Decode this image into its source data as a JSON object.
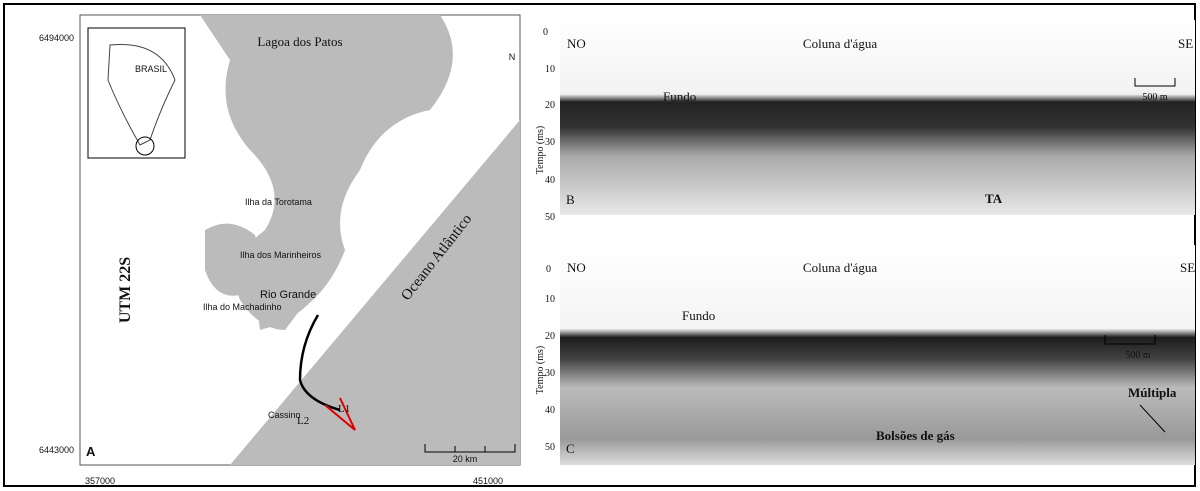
{
  "map": {
    "panel": "A",
    "y_coords": [
      "6494000",
      "6443000"
    ],
    "x_coords": [
      "357000",
      "451000"
    ],
    "lagoon": "Lagoa dos Patos",
    "north": "N",
    "inset": "BRASIL",
    "projection": "UTM 22S",
    "islands": [
      "Ilha da Torotama",
      "Ilha dos Marinheiros",
      "Ilha do Machadinho"
    ],
    "city": "Rio Grande",
    "ocean": "Oceano Atlântico",
    "beach": "Cassino",
    "lines": [
      "L2",
      "L1"
    ],
    "scale": "20 km"
  },
  "profile_b": {
    "panel": "B",
    "left": "NO",
    "center": "Coluna d'água",
    "right": "SE",
    "scale": "500 m",
    "floor": "Fundo",
    "axis": "Tempo (ms)",
    "ticks": [
      0,
      10,
      20,
      30,
      40,
      50
    ],
    "unit": "TA"
  },
  "profile_c": {
    "panel": "C",
    "left": "NO",
    "center": "Coluna d'água",
    "right": "SE",
    "scale": "500 m",
    "floor": "Fundo",
    "axis": "Tempo (ms)",
    "ticks": [
      0,
      10,
      20,
      30,
      40,
      50
    ],
    "gas": "Bolsões de gás",
    "multiple": "Múltipla"
  }
}
